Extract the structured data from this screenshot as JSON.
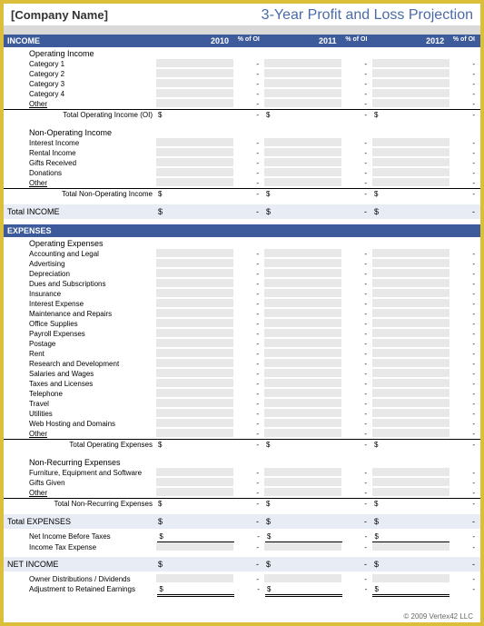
{
  "header": {
    "company_name": "[Company Name]",
    "title": "3-Year Profit and Loss Projection"
  },
  "colors": {
    "border": "#dbbf3a",
    "section_header_bg": "#3d5a9a",
    "title_color": "#4a6aa8",
    "total_section_bg": "#e8ecf5",
    "input_bg": "#e8e8e8",
    "grey_band": "#d9d9d9"
  },
  "years": [
    "2010",
    "2011",
    "2012"
  ],
  "pct_label": "% of OI",
  "income": {
    "header": "INCOME",
    "operating": {
      "title": "Operating Income",
      "rows": [
        "Category 1",
        "Category 2",
        "Category 3",
        "Category 4",
        "Other"
      ],
      "total_label": "Total Operating Income (OI)"
    },
    "non_operating": {
      "title": "Non-Operating Income",
      "rows": [
        "Interest Income",
        "Rental Income",
        "Gifts Received",
        "Donations",
        "Other"
      ],
      "total_label": "Total Non-Operating Income"
    },
    "total_label": "Total INCOME"
  },
  "expenses": {
    "header": "EXPENSES",
    "operating": {
      "title": "Operating Expenses",
      "rows": [
        "Accounting and Legal",
        "Advertising",
        "Depreciation",
        "Dues and Subscriptions",
        "Insurance",
        "Interest Expense",
        "Maintenance and Repairs",
        "Office Supplies",
        "Payroll Expenses",
        "Postage",
        "Rent",
        "Research and Development",
        "Salaries and Wages",
        "Taxes and Licenses",
        "Telephone",
        "Travel",
        "Utilities",
        "Web Hosting and Domains",
        "Other"
      ],
      "total_label": "Total Operating Expenses"
    },
    "non_recurring": {
      "title": "Non-Recurring Expenses",
      "rows": [
        "Furniture, Equipment and Software",
        "Gifts Given",
        "Other"
      ],
      "total_label": "Total Non-Recurring Expenses"
    },
    "total_label": "Total EXPENSES"
  },
  "net": {
    "before_taxes": "Net Income Before Taxes",
    "tax_expense": "Income Tax Expense",
    "header": "NET INCOME",
    "distributions": "Owner Distributions / Dividends",
    "retained": "Adjustment to Retained Earnings"
  },
  "dollar": "$",
  "dash": "-",
  "footer": "© 2009 Vertex42 LLC"
}
